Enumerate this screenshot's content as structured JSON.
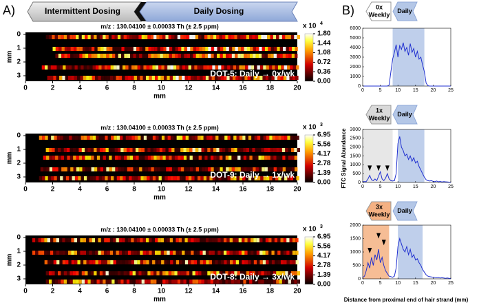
{
  "figure": {
    "panel_a": "A)",
    "panel_b": "B)",
    "intermittent": "Intermittent Dosing",
    "daily": "Daily Dosing",
    "y_label": "FTC Signal Abundance",
    "x_label": "Distance from proximal end of hair strand (mm)"
  },
  "chart_data": [
    {
      "type": "heatmap",
      "title": "m/z : 130.04100 ± 0.00033 Th (± 2.5 ppm)",
      "annotation": "DOT-5: Daily → 0x/wk",
      "x_label": "mm",
      "y_label": "mm",
      "xlim": [
        0,
        20
      ],
      "xticks": [
        0,
        2,
        4,
        6,
        8,
        10,
        12,
        14,
        16,
        18,
        20
      ],
      "ylim": [
        -0.15,
        3.4
      ],
      "y_reversed": true,
      "yticks": [
        0,
        1,
        2,
        3
      ],
      "clim": [
        0,
        1.8
      ],
      "cticks": [
        {
          "value": 1.8,
          "label": "1.80"
        },
        1.44,
        1.08,
        0.72,
        0.36,
        {
          "value": 0,
          "label": "0.00"
        }
      ],
      "multiplier": {
        "text": "x 10",
        "exponent": "4"
      }
    },
    {
      "type": "heatmap",
      "title": "m/z : 130.04100 ± 0.00033 Th (± 2.5 ppm)",
      "annotation": "DOT-9: Daily → 1x/wk",
      "x_label": "mm",
      "y_label": "mm",
      "xlim": [
        0,
        20
      ],
      "xticks": [
        0,
        2,
        4,
        6,
        8,
        10,
        12,
        14,
        16,
        18,
        20
      ],
      "ylim": [
        -0.15,
        3.4
      ],
      "y_reversed": true,
      "yticks": [
        0,
        1,
        2,
        3
      ],
      "clim": [
        0,
        6.95
      ],
      "cticks": [
        6.95,
        5.56,
        4.17,
        2.78,
        1.39,
        {
          "value": 0,
          "label": "0.00"
        }
      ],
      "multiplier": {
        "text": "x 10",
        "exponent": "3"
      }
    },
    {
      "type": "heatmap",
      "title": "m/z : 130.04100 ± 0.00033 Th (± 2.5 ppm)",
      "annotation": "DOT-8: Daily → 3x/wk",
      "x_label": "mm",
      "y_label": "mm",
      "xlim": [
        0,
        20
      ],
      "xticks": [
        0,
        2,
        4,
        6,
        8,
        10,
        12,
        14,
        16,
        18,
        20
      ],
      "ylim": [
        -0.15,
        3.4
      ],
      "y_reversed": true,
      "yticks": [
        0,
        1,
        2,
        3
      ],
      "clim": [
        0,
        6.95
      ],
      "cticks": [
        6.95,
        5.56,
        4.17,
        2.78,
        1.39,
        {
          "value": 0,
          "label": "0.00"
        }
      ],
      "multiplier": {
        "text": "x 10",
        "exponent": "3"
      }
    },
    {
      "type": "line",
      "regimen": [
        "0x",
        "Weekly"
      ],
      "regimen_color": "#ffffff",
      "phase": "Daily",
      "color": "#1f2fd0",
      "xlim": [
        0,
        25
      ],
      "xticks": [
        0,
        5,
        10,
        15,
        20,
        25
      ],
      "ylim": [
        0,
        6000
      ],
      "yticks": [
        0,
        1000,
        2000,
        3000,
        4000,
        5000,
        6000
      ],
      "shaded_regions": [
        {
          "from": 8.5,
          "to": 17.5,
          "color": "#b4c7e7"
        }
      ],
      "markers": [],
      "x": [
        0,
        0.5,
        1,
        1.5,
        2,
        2.5,
        3,
        3.5,
        4,
        4.5,
        5,
        5.5,
        6,
        6.5,
        7,
        7.5,
        8,
        8.5,
        9,
        9.5,
        10,
        10.5,
        11,
        11.5,
        12,
        12.5,
        13,
        13.5,
        14,
        14.5,
        15,
        15.5,
        16,
        16.5,
        17,
        17.5,
        18,
        18.5,
        19,
        19.5,
        20,
        20.5,
        21,
        21.5,
        22,
        22.5,
        23,
        23.5,
        24,
        24.5,
        25
      ],
      "values": [
        0,
        0,
        0,
        0,
        0,
        0,
        0,
        0,
        0,
        0,
        0,
        0,
        0,
        0,
        0,
        100,
        1500,
        2800,
        3500,
        4300,
        3000,
        4200,
        3800,
        4500,
        3600,
        4000,
        3200,
        4400,
        3500,
        3900,
        3000,
        3600,
        2800,
        3000,
        2200,
        1500,
        300,
        50,
        0,
        0,
        0,
        0,
        0,
        0,
        0,
        0,
        0,
        0,
        0,
        0,
        0
      ]
    },
    {
      "type": "line",
      "regimen": [
        "1x",
        "Weekly"
      ],
      "regimen_color": "#d9d9d9",
      "phase": "Daily",
      "color": "#1f2fd0",
      "xlim": [
        0,
        25
      ],
      "xticks": [
        0,
        5,
        10,
        15,
        20,
        25
      ],
      "ylim": [
        0,
        3000
      ],
      "yticks": [
        0,
        500,
        1000,
        1500,
        2000,
        2500,
        3000
      ],
      "shaded_regions": [
        {
          "from": 0,
          "to": 8.5,
          "color": "#e3e3e3"
        },
        {
          "from": 10,
          "to": 17.5,
          "color": "#b4c7e7"
        }
      ],
      "markers": [
        {
          "x": 2,
          "y": 650
        },
        {
          "x": 4.5,
          "y": 650
        },
        {
          "x": 7,
          "y": 650
        }
      ],
      "x": [
        0,
        0.5,
        1,
        1.5,
        2,
        2.5,
        3,
        3.5,
        4,
        4.5,
        5,
        5.5,
        6,
        6.5,
        7,
        7.5,
        8,
        8.5,
        9,
        9.5,
        10,
        10.5,
        11,
        11.5,
        12,
        12.5,
        13,
        13.5,
        14,
        14.5,
        15,
        15.5,
        16,
        16.5,
        17,
        17.5,
        18,
        18.5,
        19,
        19.5,
        20,
        20.5,
        21,
        21.5,
        22,
        22.5,
        23,
        23.5,
        24,
        24.5,
        25
      ],
      "values": [
        50,
        50,
        50,
        200,
        400,
        150,
        100,
        200,
        100,
        350,
        600,
        200,
        100,
        250,
        500,
        200,
        100,
        80,
        100,
        500,
        2200,
        2600,
        2000,
        1800,
        1500,
        1600,
        1300,
        1500,
        1200,
        1400,
        1100,
        1200,
        900,
        700,
        500,
        300,
        150,
        100,
        80,
        100,
        60,
        50,
        80,
        40,
        60,
        30,
        50,
        40,
        30,
        20,
        10
      ]
    },
    {
      "type": "line",
      "regimen": [
        "3x",
        "Weekly"
      ],
      "regimen_color": "#f4b183",
      "phase": "Daily",
      "color": "#1f2fd0",
      "xlim": [
        0,
        25
      ],
      "xticks": [
        0,
        5,
        10,
        15,
        20,
        25
      ],
      "ylim": [
        0,
        2000
      ],
      "yticks": [
        0,
        500,
        1000,
        1500,
        2000
      ],
      "shaded_regions": [
        {
          "from": 0,
          "to": 7.5,
          "color": "#f4b183"
        },
        {
          "from": 10,
          "to": 17,
          "color": "#b4c7e7"
        }
      ],
      "markers": [
        {
          "x": 2,
          "y": 950
        },
        {
          "x": 4.5,
          "y": 1500
        },
        {
          "x": 6,
          "y": 1250
        }
      ],
      "x": [
        0,
        0.5,
        1,
        1.5,
        2,
        2.5,
        3,
        3.5,
        4,
        4.5,
        5,
        5.5,
        6,
        6.5,
        7,
        7.5,
        8,
        8.5,
        9,
        9.5,
        10,
        10.5,
        11,
        11.5,
        12,
        12.5,
        13,
        13.5,
        14,
        14.5,
        15,
        15.5,
        16,
        16.5,
        17,
        17.5,
        18,
        18.5,
        19,
        19.5,
        20,
        20.5,
        21,
        21.5,
        22,
        22.5,
        23,
        23.5,
        24,
        24.5,
        25
      ],
      "values": [
        50,
        100,
        300,
        600,
        400,
        800,
        500,
        900,
        700,
        1100,
        600,
        800,
        500,
        300,
        200,
        100,
        80,
        60,
        100,
        400,
        1200,
        1500,
        1300,
        1100,
        1000,
        1200,
        900,
        1100,
        800,
        900,
        700,
        750,
        600,
        500,
        350,
        250,
        150,
        100,
        80,
        70,
        60,
        50,
        40,
        50,
        30,
        40,
        30,
        20,
        30,
        20,
        10
      ]
    }
  ]
}
